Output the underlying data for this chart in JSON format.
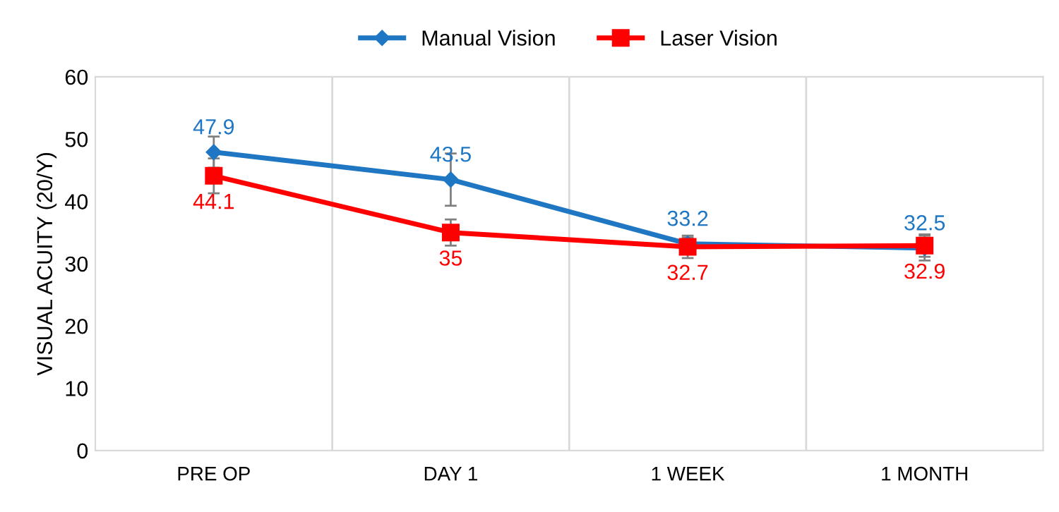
{
  "chart_data": {
    "type": "line",
    "ylabel": "VISUAL ACUITY (20/Y)",
    "categories": [
      "PRE OP",
      "DAY 1",
      "1 WEEK",
      "1 MONTH"
    ],
    "series": [
      {
        "name": "Manual Vision",
        "color": "#1f77c4",
        "marker": "diamond",
        "values": [
          47.9,
          43.5,
          33.2,
          32.5
        ],
        "errors": [
          2.5,
          4.2,
          1,
          2
        ]
      },
      {
        "name": "Laser Vision",
        "color": "#ff0000",
        "marker": "square",
        "values": [
          44.1,
          35,
          32.7,
          32.9
        ],
        "errors": [
          2.8,
          2.1,
          1.8,
          1.8
        ]
      }
    ],
    "ylim": [
      0,
      60
    ],
    "yticks": [
      0,
      10,
      20,
      30,
      40,
      50,
      60
    ],
    "grid": "x",
    "legend": "top",
    "data_labels": true
  }
}
